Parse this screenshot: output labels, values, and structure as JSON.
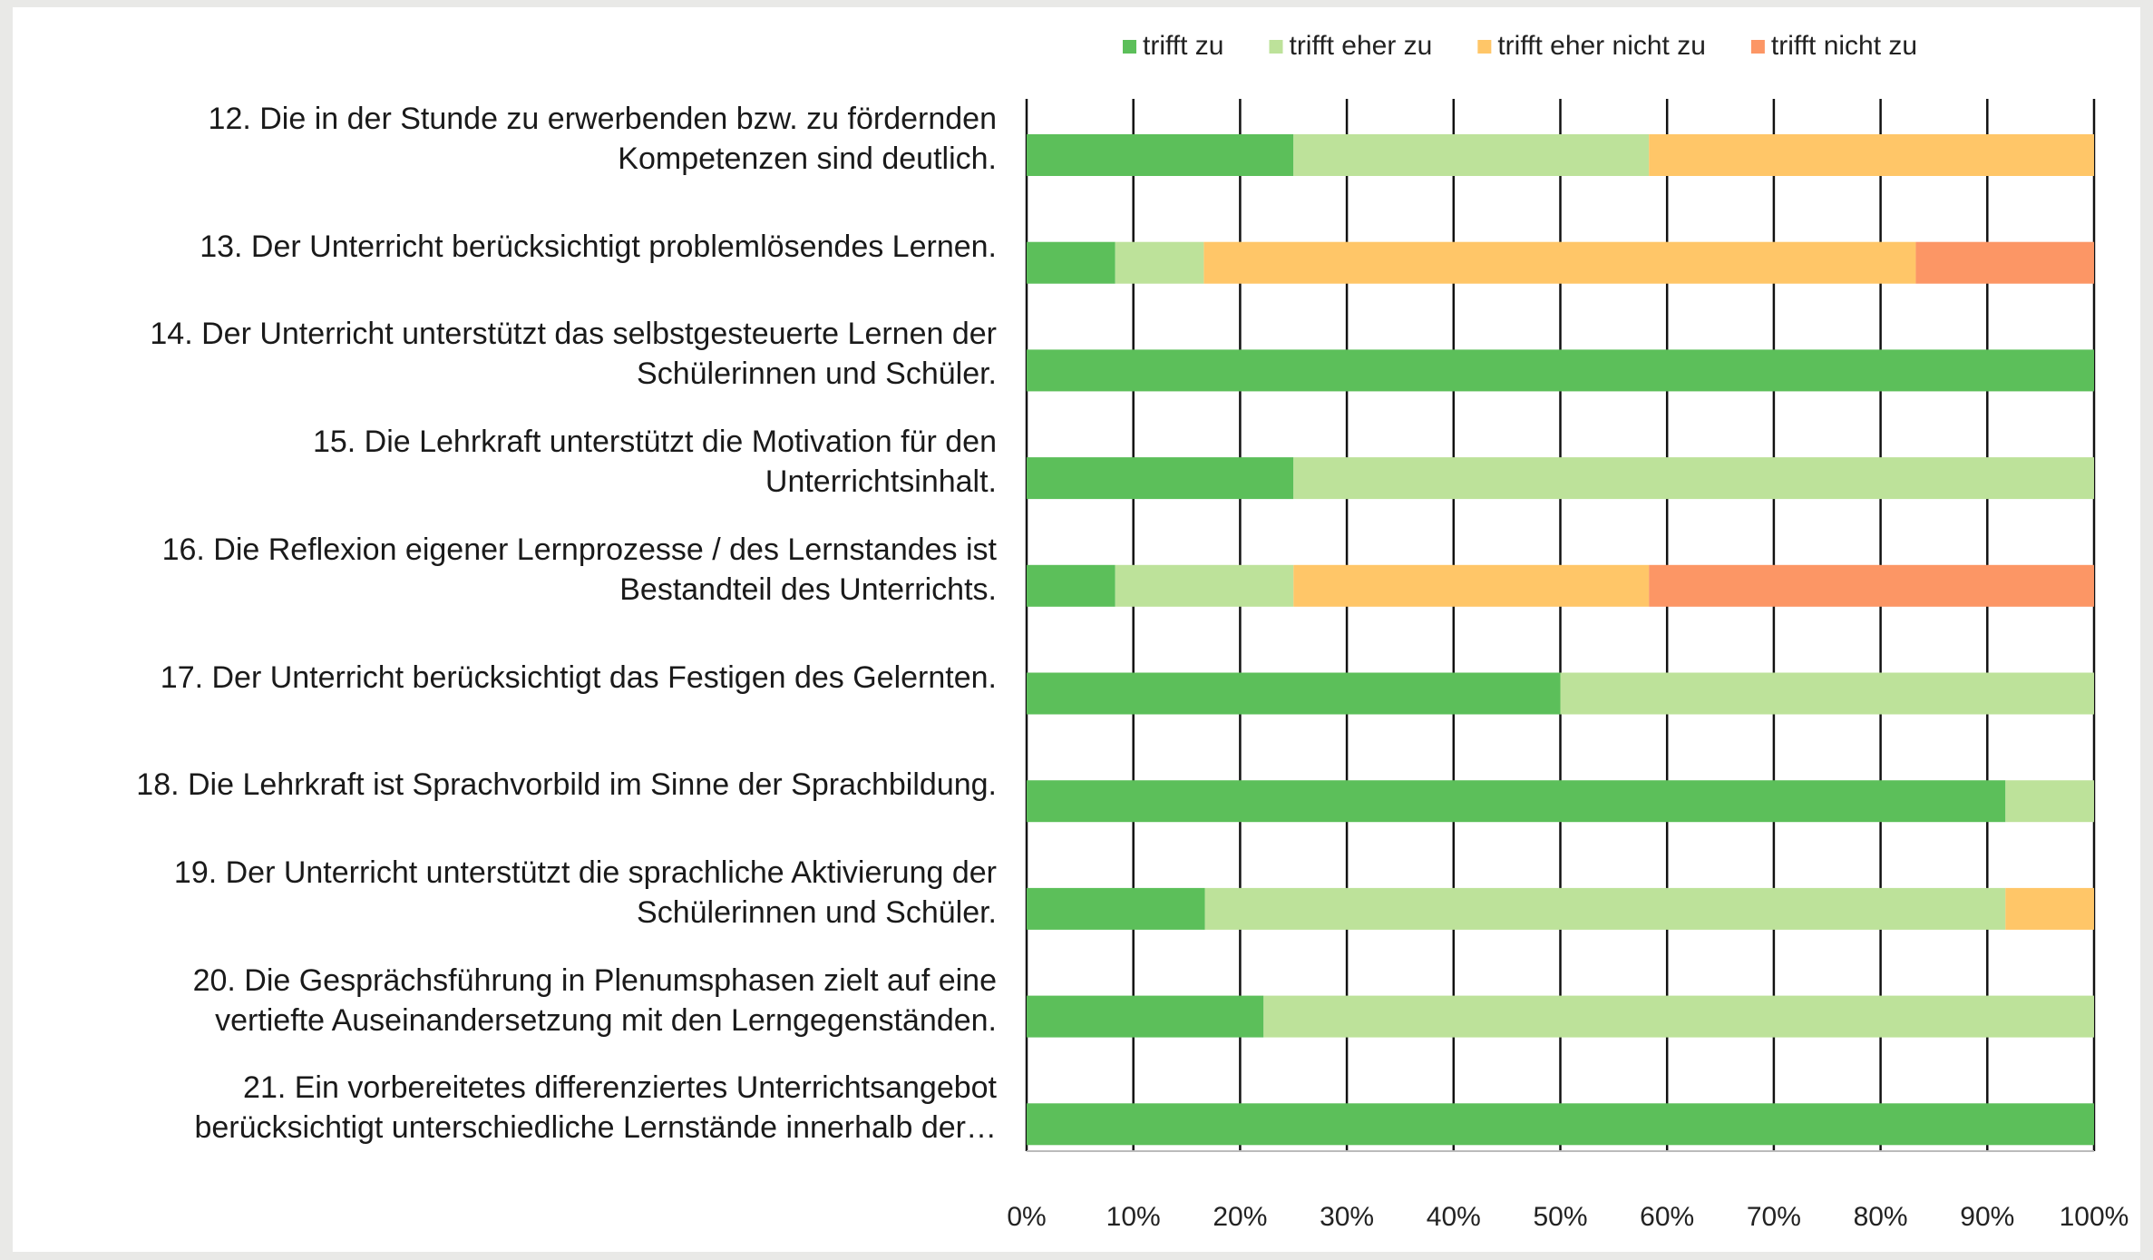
{
  "chart_data": {
    "type": "stacked_bar_horizontal",
    "categories": [
      "12. Die in der Stunde zu erwerbenden bzw. zu fördernden\nKompetenzen sind deutlich.",
      "13. Der Unterricht berücksichtigt problemlösendes Lernen.",
      "14. Der Unterricht unterstützt das selbstgesteuerte Lernen der\nSchülerinnen und Schüler.",
      "15. Die Lehrkraft unterstützt die Motivation für den\nUnterrichtsinhalt.",
      "16. Die Reflexion eigener Lernprozesse / des Lernstandes ist\nBestandteil des Unterrichts.",
      "17. Der Unterricht berücksichtigt das Festigen des Gelernten.",
      "18. Die Lehrkraft ist Sprachvorbild im Sinne der Sprachbildung.",
      "19. Der Unterricht unterstützt die sprachliche Aktivierung der\nSchülerinnen und Schüler.",
      "20. Die Gesprächsführung in Plenumsphasen zielt auf eine\nvertiefte Auseinandersetzung mit den Lerngegenständen.",
      "21. Ein vorbereitetes differenziertes Unterrichtsangebot\nberücksichtigt unterschiedliche Lernstände innerhalb der…"
    ],
    "series": [
      {
        "name": "trifft zu",
        "color": "#5cbf5a",
        "values": [
          25,
          8.3,
          100,
          25,
          8.3,
          50,
          91.7,
          16.7,
          22.2,
          100
        ]
      },
      {
        "name": "trifft eher zu",
        "color": "#bde29a",
        "values": [
          33.3,
          8.3,
          0,
          75,
          16.7,
          50,
          8.3,
          75,
          77.8,
          0
        ]
      },
      {
        "name": "trifft eher nicht zu",
        "color": "#ffc668",
        "values": [
          41.7,
          66.7,
          0,
          0,
          33.3,
          0,
          0,
          8.3,
          0,
          0
        ]
      },
      {
        "name": "trifft nicht zu",
        "color": "#fc9665",
        "values": [
          0,
          16.7,
          0,
          0,
          41.7,
          0,
          0,
          0,
          0,
          0
        ]
      }
    ],
    "xlim": [
      0,
      100
    ],
    "xticks": [
      {
        "value": 0,
        "label": "0%"
      },
      {
        "value": 10,
        "label": "10%"
      },
      {
        "value": 20,
        "label": "20%"
      },
      {
        "value": 30,
        "label": "30%"
      },
      {
        "value": 40,
        "label": "40%"
      },
      {
        "value": 50,
        "label": "50%"
      },
      {
        "value": 60,
        "label": "60%"
      },
      {
        "value": 70,
        "label": "70%"
      },
      {
        "value": 80,
        "label": "80%"
      },
      {
        "value": 90,
        "label": "90%"
      },
      {
        "value": 100,
        "label": "100%"
      }
    ],
    "grid": true,
    "legend": "top"
  }
}
